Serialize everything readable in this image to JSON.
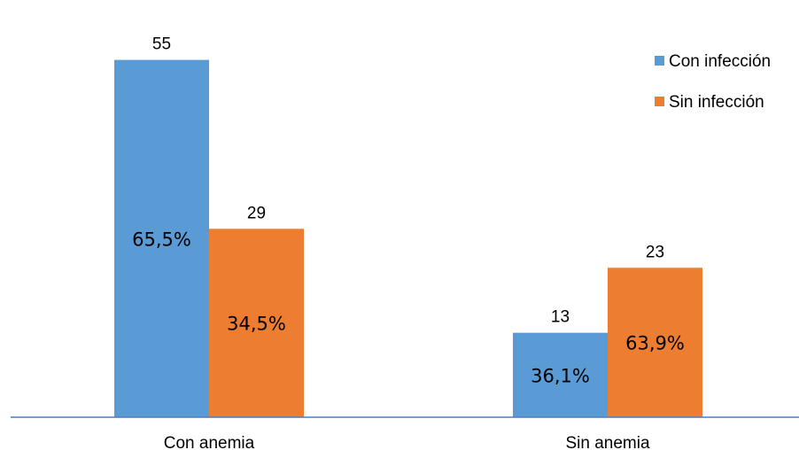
{
  "chart_data": {
    "type": "bar",
    "categories": [
      "Con anemia",
      "Sin anemia"
    ],
    "series": [
      {
        "name": "Con infección",
        "values": [
          55,
          13
        ],
        "percent_labels": [
          "65,5%",
          "36,1%"
        ],
        "color": "#5B9BD5"
      },
      {
        "name": "Sin infección",
        "values": [
          29,
          23
        ],
        "percent_labels": [
          "34,5%",
          "63,9%"
        ],
        "color": "#ED7D31"
      }
    ],
    "title": "",
    "xlabel": "",
    "ylabel": "",
    "ylim": [
      0,
      60
    ],
    "grid": false,
    "legend_position": "top-right",
    "axis_color": "#4A7EBB"
  }
}
